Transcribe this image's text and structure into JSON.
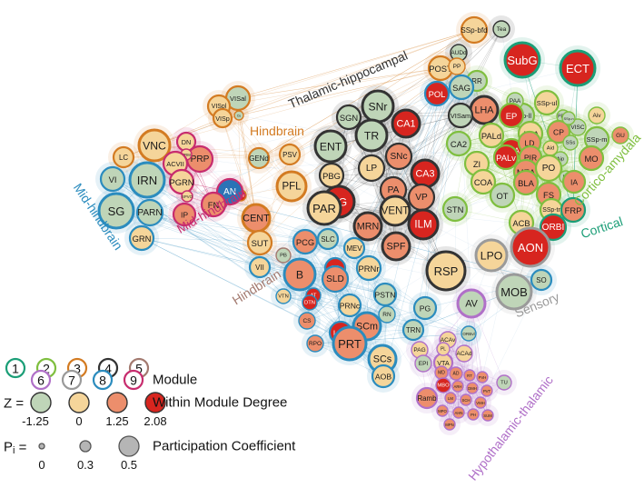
{
  "modules": [
    {
      "id": "1",
      "color": "#1b9e77"
    },
    {
      "id": "2",
      "color": "#7fbf3f"
    },
    {
      "id": "3",
      "color": "#d37b22"
    },
    {
      "id": "4",
      "color": "#333333"
    },
    {
      "id": "5",
      "color": "#a37a70"
    },
    {
      "id": "6",
      "color": "#b070c8"
    },
    {
      "id": "7",
      "color": "#9a9a9a"
    },
    {
      "id": "8",
      "color": "#2b8cbe"
    },
    {
      "id": "9",
      "color": "#c72c6e"
    }
  ],
  "z_colors": [
    "#bfd5b8",
    "#f5d59a",
    "#ec8e6c",
    "#d7251f"
  ],
  "group_labels": [
    {
      "text": "Thalamic-hippocampal",
      "module": "4"
    },
    {
      "text": "Hindbrain",
      "module": "3"
    },
    {
      "text": "Mid-hindbrain",
      "module": "8"
    },
    {
      "text": "Mid-hindbrain",
      "module": "9"
    },
    {
      "text": "Hindbrain",
      "module": "5"
    },
    {
      "text": "Cortico-amydala",
      "module": "2"
    },
    {
      "text": "Cortical",
      "module": "1"
    },
    {
      "text": "Sensory",
      "module": "7"
    },
    {
      "text": "Hypothalamic-thalamic",
      "module": "6"
    }
  ],
  "legend": {
    "module_ids": [
      "1",
      "2",
      "3",
      "4",
      "5",
      "6",
      "7",
      "8",
      "9"
    ],
    "module_label": "Module",
    "z_prefix": "Z =",
    "z_label": "Within Module Degree",
    "z_ticks": [
      "-1.25",
      "0",
      "1.25",
      "2.08"
    ],
    "p_prefix": "P",
    "p_subscript": "i",
    "p_suffix": " =",
    "p_label": "Participation Coefficient",
    "p_ticks": [
      "0",
      "0.3",
      "0.5"
    ]
  },
  "nodes": [
    {
      "label": "SSp-bfd",
      "module": "3",
      "z": 1
    },
    {
      "label": "Tea",
      "module": "4",
      "z": 0
    },
    {
      "label": "SubG",
      "module": "1",
      "z": 3
    },
    {
      "label": "ECT",
      "module": "1",
      "z": 3
    },
    {
      "label": "AUDd",
      "module": "4",
      "z": 0
    },
    {
      "label": "POST",
      "module": "3",
      "z": 1
    },
    {
      "label": "PP",
      "module": "3",
      "z": 1
    },
    {
      "label": "RR",
      "module": "2",
      "z": 0
    },
    {
      "label": "SAG",
      "module": "8",
      "z": 0
    },
    {
      "label": "POL",
      "module": "8",
      "z": 3
    },
    {
      "label": "SSp-ul",
      "module": "2",
      "z": 1
    },
    {
      "label": "SSp-ll",
      "module": "2",
      "z": 0
    },
    {
      "label": "PAA",
      "module": "2",
      "z": 0
    },
    {
      "label": "PERI",
      "module": "2",
      "z": 0
    },
    {
      "label": "VISC",
      "module": "2",
      "z": 0
    },
    {
      "label": "Aiv",
      "module": "2",
      "z": 1
    },
    {
      "label": "CP",
      "module": "2",
      "z": 2
    },
    {
      "label": "Aid",
      "module": "2",
      "z": 1
    },
    {
      "label": "SSs",
      "module": "2",
      "z": 0
    },
    {
      "label": "SSp-n",
      "module": "2",
      "z": 0
    },
    {
      "label": "SSp-m",
      "module": "2",
      "z": 0
    },
    {
      "label": "GU",
      "module": "2",
      "z": 2
    },
    {
      "label": "Aip",
      "module": "2",
      "z": 0
    },
    {
      "label": "CLA",
      "module": "2",
      "z": 0
    },
    {
      "label": "BA",
      "module": "2",
      "z": 0
    },
    {
      "label": "MO",
      "module": "2",
      "z": 2
    },
    {
      "label": "AAA",
      "module": "2",
      "z": 1
    },
    {
      "label": "EP",
      "module": "2",
      "z": 3
    },
    {
      "label": "LHA",
      "module": "4",
      "z": 2
    },
    {
      "label": "VISam",
      "module": "4",
      "z": 0
    },
    {
      "label": "CEA",
      "module": "2",
      "z": 3
    },
    {
      "label": "PALd",
      "module": "2",
      "z": 1
    },
    {
      "label": "LD",
      "module": "2",
      "z": 2
    },
    {
      "label": "CA2",
      "module": "2",
      "z": 0
    },
    {
      "label": "PALv",
      "module": "2",
      "z": 3
    },
    {
      "label": "PIR",
      "module": "2",
      "z": 2
    },
    {
      "label": "MEA",
      "module": "2",
      "z": 2
    },
    {
      "label": "PO",
      "module": "2",
      "z": 1
    },
    {
      "label": "ZI",
      "module": "2",
      "z": 1
    },
    {
      "label": "COA",
      "module": "2",
      "z": 1
    },
    {
      "label": "BLA",
      "module": "2",
      "z": 2
    },
    {
      "label": "OT",
      "module": "2",
      "z": 0
    },
    {
      "label": "IA",
      "module": "2",
      "z": 2
    },
    {
      "label": "FS",
      "module": "2",
      "z": 2
    },
    {
      "label": "STN",
      "module": "2",
      "z": 0
    },
    {
      "label": "SSp-tr",
      "module": "2",
      "z": 1
    },
    {
      "label": "ACB",
      "module": "2",
      "z": 1
    },
    {
      "label": "FRP",
      "module": "1",
      "z": 2
    },
    {
      "label": "ORBI",
      "module": "1",
      "z": 3
    },
    {
      "label": "SNr",
      "module": "4",
      "z": 0
    },
    {
      "label": "SGN",
      "module": "4",
      "z": 0
    },
    {
      "label": "CA1",
      "module": "4",
      "z": 3
    },
    {
      "label": "TR",
      "module": "4",
      "z": 0
    },
    {
      "label": "ENT",
      "module": "4",
      "z": 0
    },
    {
      "label": "SNc",
      "module": "4",
      "z": 2
    },
    {
      "label": "LP",
      "module": "4",
      "z": 1
    },
    {
      "label": "CA3",
      "module": "4",
      "z": 3
    },
    {
      "label": "PBG",
      "module": "4",
      "z": 1
    },
    {
      "label": "DG",
      "module": "4",
      "z": 3
    },
    {
      "label": "PA",
      "module": "4",
      "z": 2
    },
    {
      "label": "VP",
      "module": "4",
      "z": 2
    },
    {
      "label": "PAR",
      "module": "4",
      "z": 1
    },
    {
      "label": "VENT",
      "module": "4",
      "z": 1
    },
    {
      "label": "MRN",
      "module": "4",
      "z": 2
    },
    {
      "label": "ILM",
      "module": "4",
      "z": 3
    },
    {
      "label": "SPF",
      "module": "4",
      "z": 2
    },
    {
      "label": "RSP",
      "module": "4",
      "z": 1
    },
    {
      "label": "LPO",
      "module": "7",
      "z": 1
    },
    {
      "label": "AON",
      "module": "7",
      "z": 3
    },
    {
      "label": "MOB",
      "module": "7",
      "z": 0
    },
    {
      "label": "SO",
      "module": "8",
      "z": 0
    },
    {
      "label": "AV",
      "module": "6",
      "z": 0
    },
    {
      "label": "PSV",
      "module": "3",
      "z": 1
    },
    {
      "label": "GENd",
      "module": "3",
      "z": 0
    },
    {
      "label": "PFL",
      "module": "3",
      "z": 1
    },
    {
      "label": "CENT",
      "module": "3",
      "z": 2
    },
    {
      "label": "SUT",
      "module": "3",
      "z": 1
    },
    {
      "label": "SIM",
      "module": "3",
      "z": 3
    },
    {
      "label": "PB",
      "module": "5",
      "z": 0
    },
    {
      "label": "VISal",
      "module": "3",
      "z": 0
    },
    {
      "label": "VISpl",
      "module": "3",
      "z": 1
    },
    {
      "label": "VISp",
      "module": "3",
      "z": 1
    },
    {
      "label": "Cu",
      "module": "3",
      "z": 0
    },
    {
      "label": "VNC",
      "module": "3",
      "z": 1
    },
    {
      "label": "LC",
      "module": "3",
      "z": 1
    },
    {
      "label": "DN",
      "module": "9",
      "z": 1
    },
    {
      "label": "PRP",
      "module": "9",
      "z": 2
    },
    {
      "label": "PRM",
      "module": "9",
      "z": 1
    },
    {
      "label": "ACVII",
      "module": "9",
      "z": 1
    },
    {
      "label": "PGRN",
      "module": "9",
      "z": 1
    },
    {
      "label": "AN",
      "module": "9",
      "z": 4
    },
    {
      "label": "SPVO",
      "module": "9",
      "z": 1
    },
    {
      "label": "FN",
      "module": "9",
      "z": 2
    },
    {
      "label": "IP",
      "module": "9",
      "z": 2
    },
    {
      "label": "VI",
      "module": "8",
      "z": 0
    },
    {
      "label": "IRN",
      "module": "8",
      "z": 0
    },
    {
      "label": "SG",
      "module": "8",
      "z": 0
    },
    {
      "label": "PARN",
      "module": "8",
      "z": 0
    },
    {
      "label": "GRN",
      "module": "8",
      "z": 1
    },
    {
      "label": "VII",
      "module": "8",
      "z": 1
    },
    {
      "label": "PCG",
      "module": "8",
      "z": 2
    },
    {
      "label": "SLC",
      "module": "8",
      "z": 0
    },
    {
      "label": "MEV",
      "module": "8",
      "z": 1
    },
    {
      "label": "B",
      "module": "8",
      "z": 2
    },
    {
      "label": "NI",
      "module": "8",
      "z": 3
    },
    {
      "label": "SLD",
      "module": "8",
      "z": 2
    },
    {
      "label": "PRNr",
      "module": "8",
      "z": 1
    },
    {
      "label": "AT",
      "module": "8",
      "z": 3
    },
    {
      "label": "DTN",
      "module": "8",
      "z": 3
    },
    {
      "label": "VTN",
      "module": "8",
      "z": 1
    },
    {
      "label": "PSTN",
      "module": "8",
      "z": 0
    },
    {
      "label": "PRNc",
      "module": "8",
      "z": 1
    },
    {
      "label": "SCm",
      "module": "8",
      "z": 2
    },
    {
      "label": "CS",
      "module": "8",
      "z": 2
    },
    {
      "label": "LDT",
      "module": "8",
      "z": 3
    },
    {
      "label": "RPO",
      "module": "8",
      "z": 2
    },
    {
      "label": "PRT",
      "module": "8",
      "z": 2
    },
    {
      "label": "SCs",
      "module": "8",
      "z": 1
    },
    {
      "label": "AOB",
      "module": "8",
      "z": 1
    },
    {
      "label": "PG",
      "module": "8",
      "z": 0
    },
    {
      "label": "RN",
      "module": "8",
      "z": 0
    },
    {
      "label": "TRN",
      "module": "8",
      "z": 0
    },
    {
      "label": "ORBvl",
      "module": "8",
      "z": 0
    },
    {
      "label": "ACAv",
      "module": "6",
      "z": 1
    },
    {
      "label": "ACAd",
      "module": "6",
      "z": 1
    },
    {
      "label": "VTA",
      "module": "6",
      "z": 1
    },
    {
      "label": "PL",
      "module": "6",
      "z": 1
    },
    {
      "label": "PAG",
      "module": "6",
      "z": 1
    },
    {
      "label": "EPI",
      "module": "6",
      "z": 0
    },
    {
      "label": "Ramb",
      "module": "6",
      "z": 2
    },
    {
      "label": "TU",
      "module": "6",
      "z": 0
    },
    {
      "label": "MD",
      "module": "6",
      "z": 2
    },
    {
      "label": "AD",
      "module": "6",
      "z": 2
    },
    {
      "label": "RT",
      "module": "6",
      "z": 2
    },
    {
      "label": "PVH",
      "module": "6",
      "z": 2
    },
    {
      "label": "MBO",
      "module": "6",
      "z": 3
    },
    {
      "label": "ARH",
      "module": "6",
      "z": 2
    },
    {
      "label": "DMH",
      "module": "6",
      "z": 2
    },
    {
      "label": "PVT",
      "module": "6",
      "z": 2
    },
    {
      "label": "LM",
      "module": "6",
      "z": 2
    },
    {
      "label": "SCH",
      "module": "6",
      "z": 2
    },
    {
      "label": "VMH",
      "module": "6",
      "z": 2
    },
    {
      "label": "MPO",
      "module": "6",
      "z": 2
    },
    {
      "label": "AHN",
      "module": "6",
      "z": 2
    },
    {
      "label": "PH",
      "module": "6",
      "z": 2
    },
    {
      "label": "SUM",
      "module": "6",
      "z": 2
    },
    {
      "label": "MPN",
      "module": "6",
      "z": 2
    }
  ]
}
